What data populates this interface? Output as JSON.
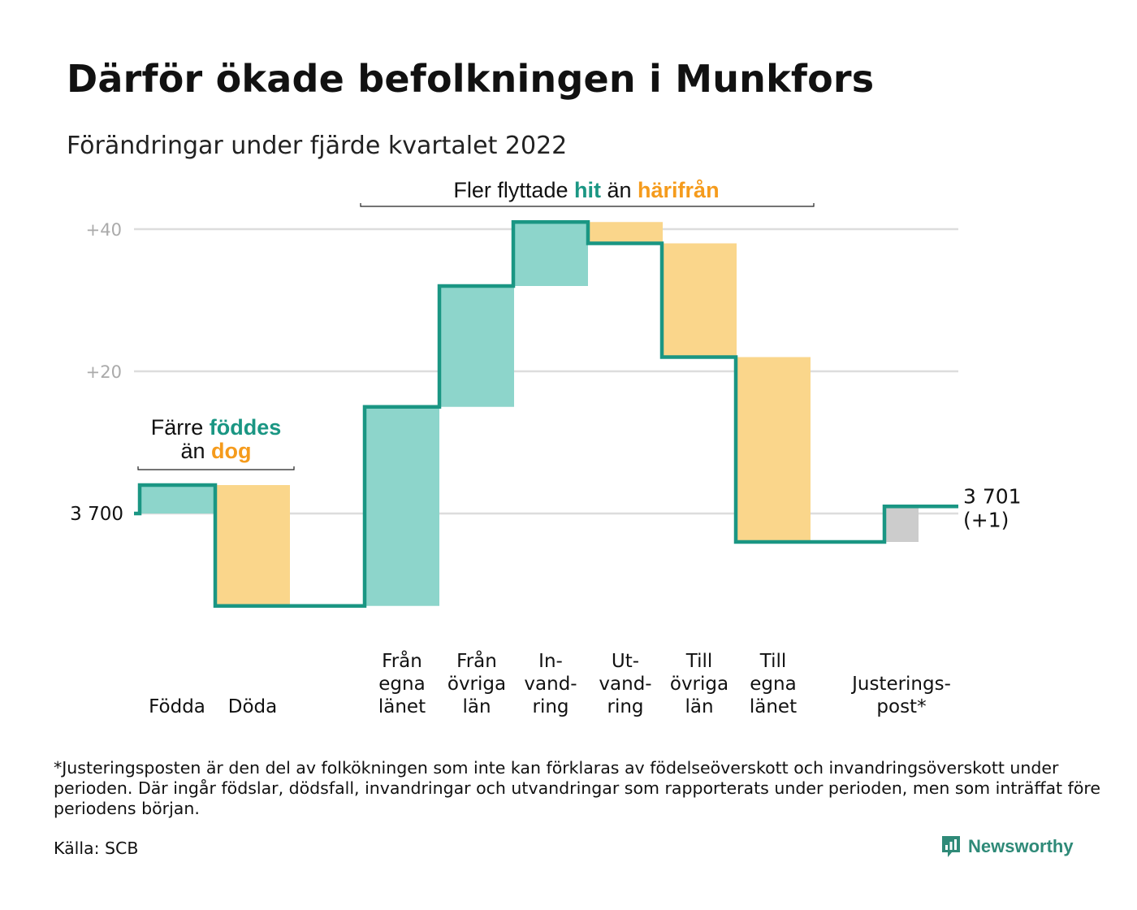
{
  "title": "Därför ökade befolkningen i Munkfors",
  "subtitle": "Förändringar under fjärde kvartalet 2022",
  "colors": {
    "increase": "#8dd5cb",
    "decrease": "#fad68b",
    "adjustment": "#cccccc",
    "line": "#1a9683",
    "accent_teal": "#1a9683",
    "accent_orange": "#f59b1c",
    "grid": "#dddddd"
  },
  "chart_data": {
    "type": "waterfall",
    "base_value": 3700,
    "base_label": "3 700",
    "end_value": 3701,
    "end_label": "3 701",
    "end_change_label": "(+1)",
    "yrange": [
      -16,
      43
    ],
    "ticks": [
      {
        "value": 40,
        "label": "+40"
      },
      {
        "value": 20,
        "label": "+20"
      },
      {
        "value": 0,
        "label": ""
      }
    ],
    "grid": true,
    "steps": [
      {
        "label_lines": [
          "Födda"
        ],
        "change": 4,
        "kind": "increase"
      },
      {
        "label_lines": [
          "Döda"
        ],
        "change": -17,
        "kind": "decrease"
      },
      {
        "label_lines": [
          "Från",
          "egna",
          "länet"
        ],
        "change": 28,
        "kind": "increase"
      },
      {
        "label_lines": [
          "Från",
          "övriga",
          "län"
        ],
        "change": 17,
        "kind": "increase"
      },
      {
        "label_lines": [
          "In-",
          "vand-",
          "ring"
        ],
        "change": 9,
        "kind": "increase"
      },
      {
        "label_lines": [
          "Ut-",
          "vand-",
          "ring"
        ],
        "change": -3,
        "kind": "decrease"
      },
      {
        "label_lines": [
          "Till",
          "övriga",
          "län"
        ],
        "change": -16,
        "kind": "decrease"
      },
      {
        "label_lines": [
          "Till",
          "egna",
          "länet"
        ],
        "change": -26,
        "kind": "decrease"
      },
      {
        "label_lines": [
          "Justerings-",
          "post*"
        ],
        "change": 5,
        "kind": "adjustment"
      }
    ],
    "annotations": [
      {
        "lines": [
          [
            {
              "text": "Färre ",
              "style": "plain"
            },
            {
              "text": "föddes",
              "style": "teal"
            }
          ],
          [
            {
              "text": "än ",
              "style": "plain"
            },
            {
              "text": "dog",
              "style": "orange"
            }
          ]
        ]
      },
      {
        "lines": [
          [
            {
              "text": "Fler flyttade ",
              "style": "plain"
            },
            {
              "text": "hit",
              "style": "teal"
            },
            {
              "text": " än ",
              "style": "plain"
            },
            {
              "text": "härifrån",
              "style": "orange"
            }
          ]
        ]
      }
    ]
  },
  "footnote": "*Justeringsposten är den del av folkökningen som inte kan förklaras av födelseöverskott och invandringsöverskott under perioden. Där ingår födslar, dödsfall, invandringar och utvandringar som rapporterats under perioden, men som inträffat före periodens början.",
  "source": "Källa: SCB",
  "brand": {
    "name": "Newsworthy",
    "icon": "newsworthy-logo-icon"
  }
}
